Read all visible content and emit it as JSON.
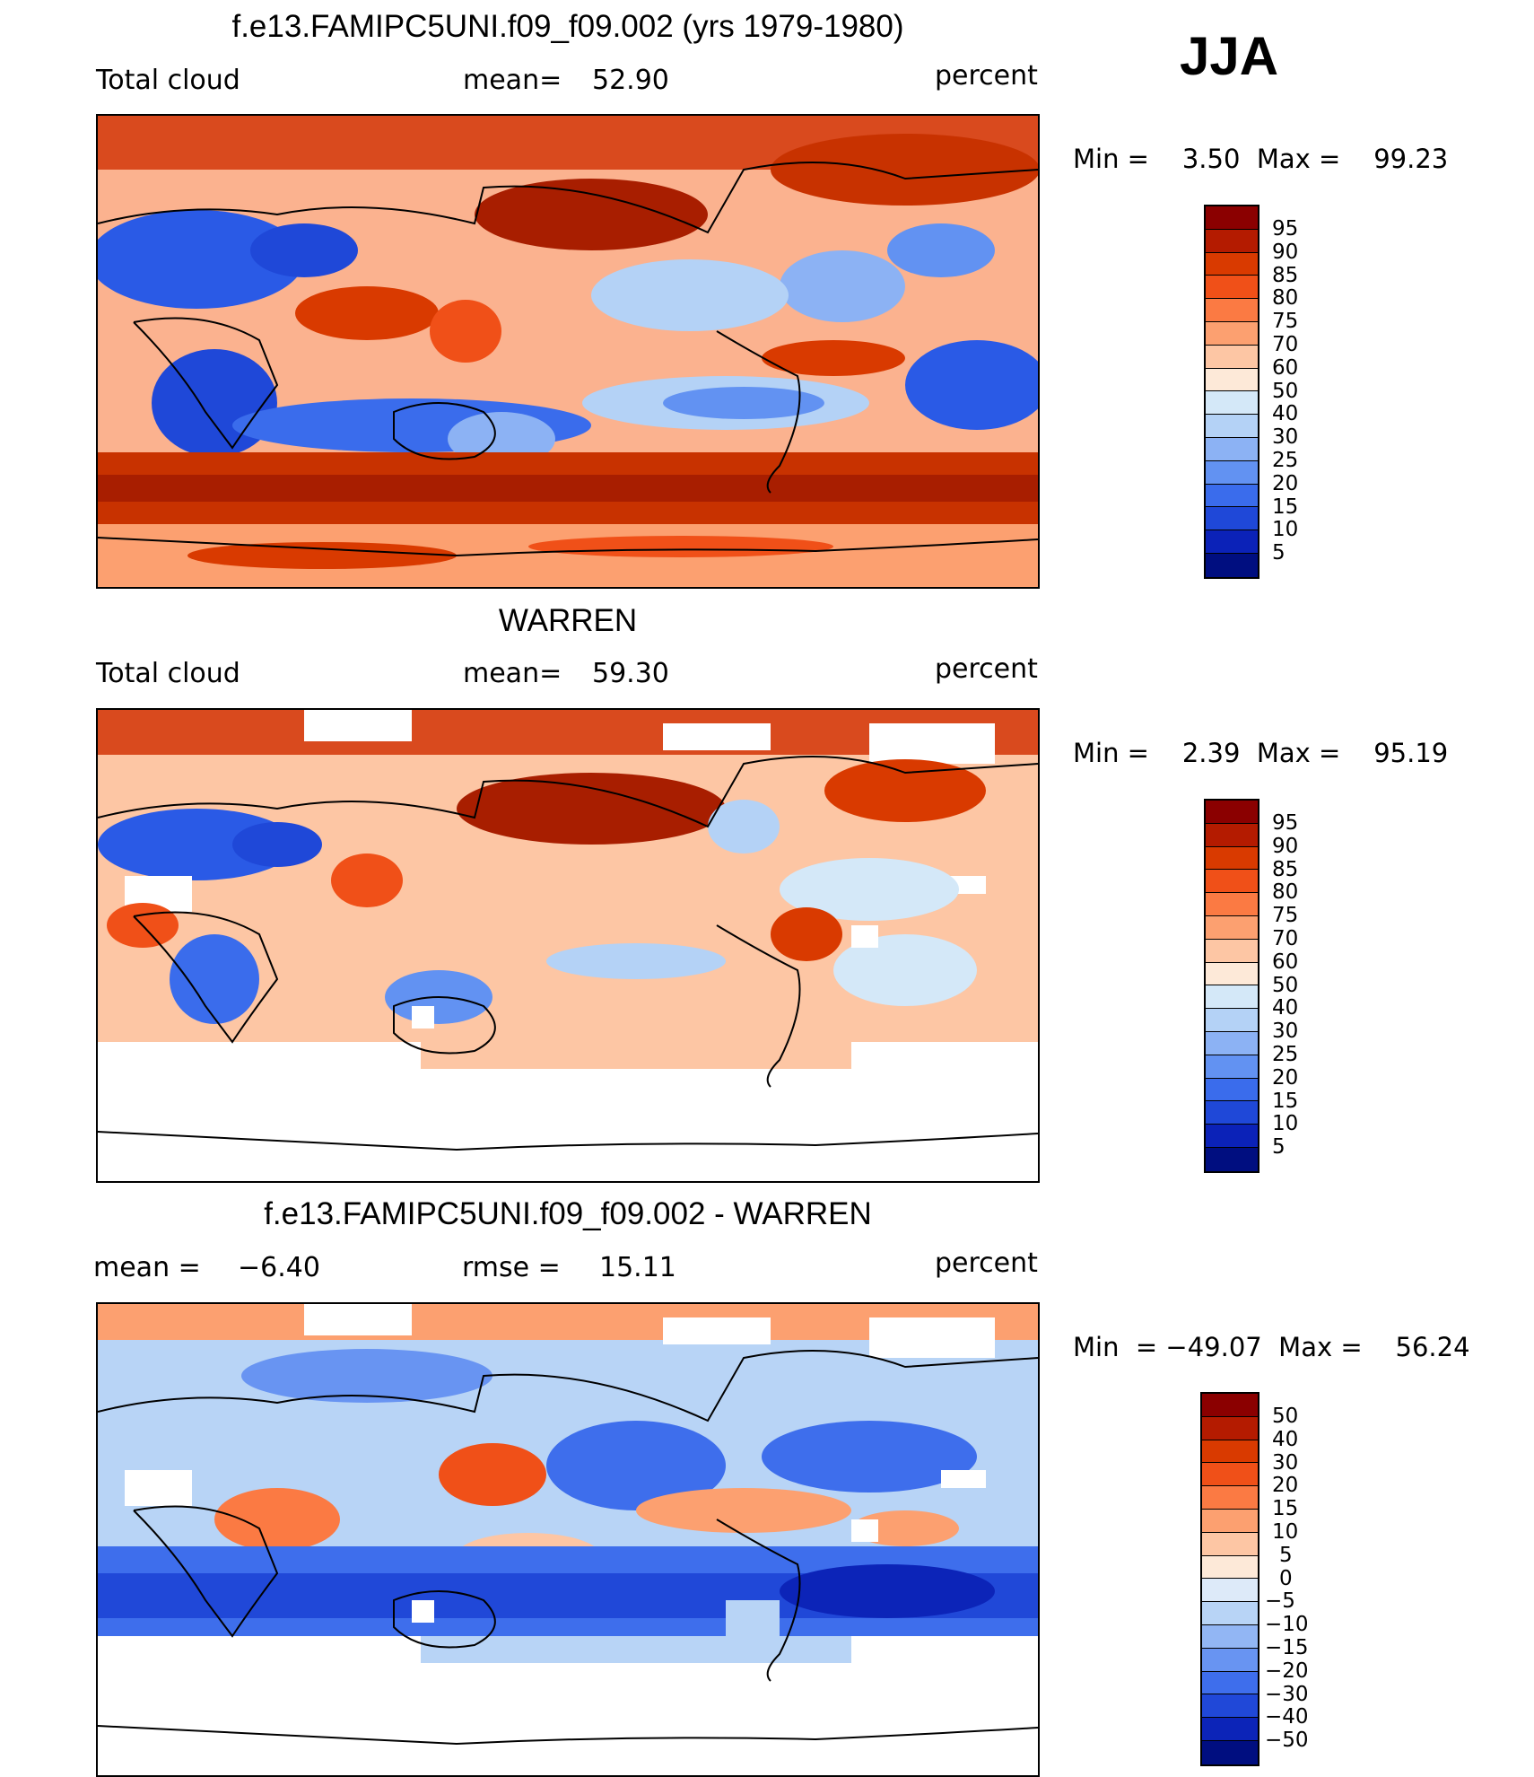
{
  "season": "JJA",
  "panels": [
    {
      "title": "f.e13.FAMIPC5UNI.f09_f09.002 (yrs 1979-1980)",
      "left_label": "Total cloud",
      "mean_label": "mean=",
      "mean_value": "52.90",
      "units": "percent",
      "minmax": "Min =    3.50  Max =    99.23"
    },
    {
      "title": "WARREN",
      "left_label": "Total cloud",
      "mean_label": "mean=",
      "mean_value": "59.30",
      "units": "percent",
      "minmax": "Min =    2.39  Max =    95.19"
    },
    {
      "title": "f.e13.FAMIPC5UNI.f09_f09.002 - WARREN",
      "left_label": "mean  =",
      "left_value": "−6.40",
      "rmse_label": "rmse  =",
      "rmse_value": "15.11",
      "units": "percent",
      "minmax": "Min  = −49.07  Max =    56.24"
    }
  ],
  "colorbar_abs": {
    "labels": [
      "95",
      "90",
      "85",
      "80",
      "75",
      "70",
      "60",
      "50",
      "40",
      "30",
      "25",
      "20",
      "15",
      "10",
      "5"
    ],
    "colors": [
      "#8b0000",
      "#b41b00",
      "#d93a00",
      "#f05018",
      "#fb7a43",
      "#fca070",
      "#fdc6a4",
      "#fde9d8",
      "#d4e8f8",
      "#b4d2f6",
      "#8cb2f4",
      "#6292f2",
      "#3a6cec",
      "#1f48d8",
      "#0b22b8",
      "#000e80"
    ]
  },
  "colorbar_diff": {
    "labels": [
      "50",
      "40",
      "30",
      "20",
      "15",
      "10",
      "5",
      "0",
      "−5",
      "−10",
      "−15",
      "−20",
      "−30",
      "−40",
      "−50"
    ],
    "colors": [
      "#8b0000",
      "#b41b00",
      "#d93a00",
      "#f05018",
      "#fb7a43",
      "#fca070",
      "#fdc6a4",
      "#fde9d8",
      "#ddeaf9",
      "#b8d4f6",
      "#92b6f4",
      "#6894f2",
      "#3e6eec",
      "#2048d8",
      "#0c24b8",
      "#000e80"
    ]
  },
  "legend_swatches": {
    "high": "#c83200",
    "mid": "#fbdcc8",
    "low": "#2a5ae6",
    "missing": "#ffffff"
  }
}
